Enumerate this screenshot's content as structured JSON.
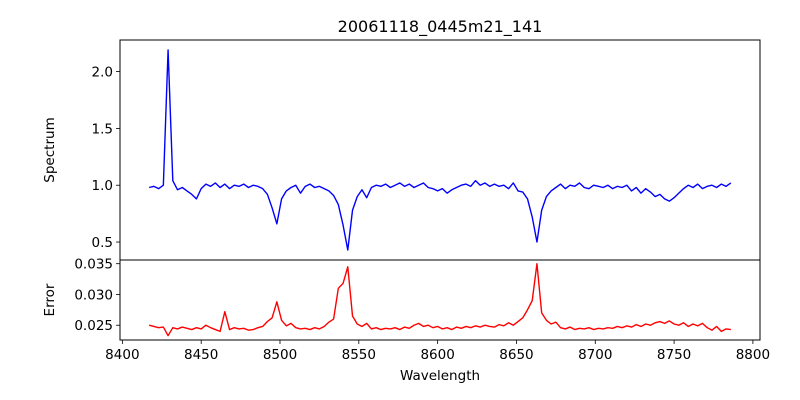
{
  "chart_data": [
    {
      "type": "line",
      "title": "20061118_0445m21_141",
      "xlabel": "",
      "ylabel": "Spectrum",
      "xlim": [
        8398.5,
        8804.5
      ],
      "ylim": [
        0.342,
        2.278
      ],
      "yticks": [
        0.5,
        1.0,
        1.5,
        2.0
      ],
      "ytick_labels": [
        "0.5",
        "1.0",
        "1.5",
        "2.0"
      ],
      "color": "#0000ff",
      "x_start": 8417,
      "x_step": 3,
      "values": [
        0.98,
        0.99,
        0.97,
        1.0,
        2.19,
        1.04,
        0.96,
        0.98,
        0.95,
        0.92,
        0.88,
        0.97,
        1.01,
        0.99,
        1.02,
        0.98,
        1.01,
        0.97,
        1.0,
        0.99,
        1.01,
        0.98,
        1.0,
        0.99,
        0.97,
        0.92,
        0.8,
        0.66,
        0.88,
        0.95,
        0.98,
        1.0,
        0.93,
        0.99,
        1.01,
        0.98,
        0.99,
        0.97,
        0.95,
        0.91,
        0.83,
        0.65,
        0.43,
        0.78,
        0.9,
        0.96,
        0.89,
        0.98,
        1.0,
        0.99,
        1.01,
        0.98,
        1.0,
        1.02,
        0.99,
        1.01,
        0.98,
        1.0,
        1.02,
        0.98,
        0.97,
        0.95,
        0.97,
        0.93,
        0.96,
        0.98,
        1.0,
        1.01,
        0.99,
        1.04,
        1.0,
        1.02,
        0.99,
        1.01,
        0.99,
        1.0,
        0.97,
        1.02,
        0.95,
        0.94,
        0.88,
        0.72,
        0.5,
        0.78,
        0.9,
        0.95,
        0.98,
        1.01,
        0.97,
        1.0,
        0.99,
        1.02,
        0.98,
        0.97,
        1.0,
        0.99,
        0.98,
        1.0,
        0.97,
        0.99,
        0.98,
        1.0,
        0.95,
        0.98,
        0.93,
        0.97,
        0.94,
        0.9,
        0.92,
        0.88,
        0.86,
        0.89,
        0.93,
        0.97,
        1.0,
        0.98,
        1.01,
        0.97,
        0.99,
        1.0,
        0.98,
        1.01,
        0.99,
        1.02
      ]
    },
    {
      "type": "line",
      "xlabel": "Wavelength",
      "ylabel": "Error",
      "xlim": [
        8398.5,
        8804.5
      ],
      "ylim": [
        0.0226,
        0.0356
      ],
      "xticks": [
        8400,
        8450,
        8500,
        8550,
        8600,
        8650,
        8700,
        8750,
        8800
      ],
      "xtick_labels": [
        "8400",
        "8450",
        "8500",
        "8550",
        "8600",
        "8650",
        "8700",
        "8750",
        "8800"
      ],
      "yticks": [
        0.025,
        0.03,
        0.035
      ],
      "ytick_labels": [
        "0.025",
        "0.030",
        "0.035"
      ],
      "color": "#ff0000",
      "x_start": 8417,
      "x_step": 3,
      "values": [
        0.025,
        0.0248,
        0.0246,
        0.0247,
        0.0233,
        0.0246,
        0.0244,
        0.0247,
        0.0245,
        0.0243,
        0.0246,
        0.0244,
        0.025,
        0.0246,
        0.0243,
        0.024,
        0.0272,
        0.0243,
        0.0246,
        0.0244,
        0.0245,
        0.0242,
        0.0243,
        0.0246,
        0.0248,
        0.0256,
        0.0262,
        0.0288,
        0.0258,
        0.0249,
        0.0253,
        0.0246,
        0.0244,
        0.0245,
        0.0243,
        0.0246,
        0.0244,
        0.0248,
        0.0255,
        0.026,
        0.031,
        0.0318,
        0.0345,
        0.0265,
        0.0252,
        0.0248,
        0.0253,
        0.0244,
        0.0246,
        0.0243,
        0.0245,
        0.0244,
        0.0246,
        0.0243,
        0.0247,
        0.0245,
        0.025,
        0.0253,
        0.0248,
        0.025,
        0.0246,
        0.0248,
        0.0244,
        0.0246,
        0.0243,
        0.0247,
        0.0245,
        0.0248,
        0.0246,
        0.0249,
        0.0247,
        0.025,
        0.0248,
        0.0247,
        0.0251,
        0.0249,
        0.0254,
        0.025,
        0.0256,
        0.0262,
        0.0275,
        0.029,
        0.035,
        0.027,
        0.0258,
        0.0252,
        0.0255,
        0.0246,
        0.0244,
        0.0247,
        0.0243,
        0.0245,
        0.0244,
        0.0246,
        0.0243,
        0.0245,
        0.0244,
        0.0246,
        0.0245,
        0.0248,
        0.0246,
        0.0249,
        0.0247,
        0.0251,
        0.0248,
        0.0252,
        0.025,
        0.0254,
        0.0256,
        0.0253,
        0.0257,
        0.0252,
        0.025,
        0.0254,
        0.0248,
        0.0252,
        0.0249,
        0.0253,
        0.0246,
        0.0242,
        0.0248,
        0.024,
        0.0244,
        0.0243
      ]
    }
  ]
}
